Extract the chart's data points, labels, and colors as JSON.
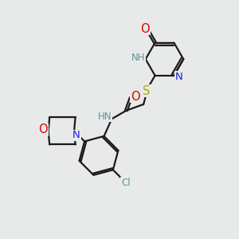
{
  "bg_color": "#e8eaea",
  "bond_color": "#1a1a1a",
  "bond_width": 1.6,
  "dbo": 0.055,
  "atom_colors": {
    "O": "#e00000",
    "N": "#2222dd",
    "NH": "#5a9696",
    "S": "#aaaa00",
    "Cl": "#5a9696",
    "C": "#1a1a1a"
  },
  "fs": 8.5
}
